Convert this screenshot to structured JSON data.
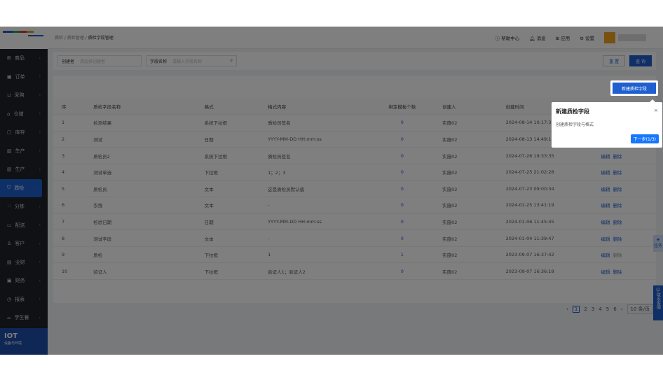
{
  "breadcrumb": [
    "质检",
    "质检管理",
    "质检字段管理"
  ],
  "header": {
    "help": "帮助中心",
    "messages": "消息",
    "apps": "应用",
    "settings": "设置"
  },
  "sidebar": {
    "items": [
      {
        "label": "商品",
        "icon": "grid-icon"
      },
      {
        "label": "订单",
        "icon": "clipboard-icon"
      },
      {
        "label": "采购",
        "icon": "cart-icon"
      },
      {
        "label": "仓储",
        "icon": "warehouse-icon"
      },
      {
        "label": "库存",
        "icon": "box-icon"
      },
      {
        "label": "生产",
        "icon": "factory-icon"
      },
      {
        "label": "生产",
        "icon": "factory-icon"
      },
      {
        "label": "质检",
        "icon": "shield-icon",
        "active": true
      },
      {
        "label": "分拣",
        "icon": "sort-icon"
      },
      {
        "label": "配送",
        "icon": "truck-icon"
      },
      {
        "label": "客户",
        "icon": "user-icon"
      },
      {
        "label": "业财",
        "icon": "chart-icon"
      },
      {
        "label": "财务",
        "icon": "wallet-icon"
      },
      {
        "label": "报表",
        "icon": "clock-icon"
      },
      {
        "label": "学生餐",
        "icon": "dish-icon"
      }
    ],
    "iot_title": "IOT",
    "iot_sub": "设备与环境"
  },
  "filter": {
    "creator_label": "创建者",
    "creator_placeholder": "请选择创建者",
    "field_label": "字段名称",
    "field_placeholder": "请输入字段名称",
    "reset": "重 置",
    "query": "查 询"
  },
  "new_button": "新建质检字段",
  "table": {
    "headers": [
      "序",
      "质检字段名称",
      "格式",
      "格式内容",
      "绑定模板个数",
      "创建人",
      "创建时间",
      "操作"
    ],
    "rows": [
      [
        "1",
        "检测结果",
        "系统下拉框",
        "质检员签名",
        "0",
        "实施02",
        "2024-08-14 10:17:31"
      ],
      [
        "2",
        "测试",
        "日期",
        "YYYY-MM-DD HH:mm:ss",
        "0",
        "实施02",
        "2024-08-13 14:49:17"
      ],
      [
        "3",
        "质检员2",
        "系统下拉框",
        "质检员签名",
        "0",
        "实施02",
        "2024-07-26 19:33:35"
      ],
      [
        "4",
        "测试单选",
        "下拉框",
        "1；2；3",
        "0",
        "实施02",
        "2024-07-25 21:02:28"
      ],
      [
        "5",
        "质检员",
        "文本",
        "这是质检员默认值",
        "0",
        "实施02",
        "2024-07-23 09:00:34"
      ],
      [
        "6",
        "农残",
        "文本",
        "-",
        "0",
        "实施02",
        "2024-01-25 13:41:19"
      ],
      [
        "7",
        "检验日期",
        "日期",
        "YYYY-MM-DD HH:mm:ss",
        "0",
        "实施02",
        "2024-01-06 11:45:45"
      ],
      [
        "8",
        "测试字段",
        "文本",
        "-",
        "0",
        "实施02",
        "2024-01-04 11:39:47"
      ],
      [
        "9",
        "质检",
        "下拉框",
        "1",
        "1",
        "实施02",
        "2023-09-07 16:37:42"
      ],
      [
        "10",
        "验证人",
        "下拉框",
        "验证人1；验证人2",
        "0",
        "实施02",
        "2023-09-07 16:36:18"
      ]
    ],
    "edit": "编辑",
    "delete": "删除"
  },
  "pagination": {
    "pages": [
      "1",
      "2",
      "3",
      "4",
      "5",
      "6"
    ],
    "current": "1",
    "page_size": "10 条/页"
  },
  "float": {
    "task": "任务",
    "service": "联系客服"
  },
  "tour": {
    "title": "新建质检字段",
    "body": "创建质检字段与格式",
    "next": "下一步(1/3)"
  }
}
